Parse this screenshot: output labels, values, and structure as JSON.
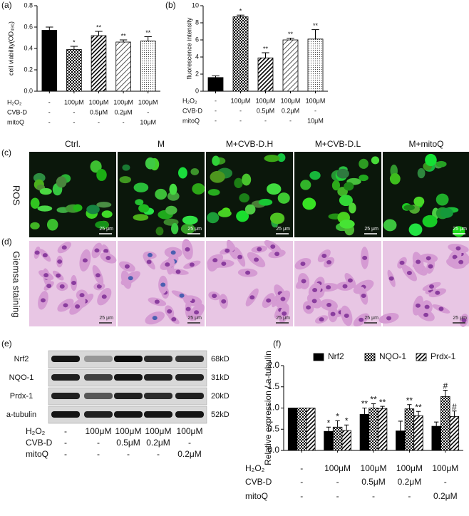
{
  "chart_data": [
    {
      "type": "bar",
      "panel_label": "(a)",
      "y_label": "cell viability(OD₄₉₀)",
      "categories": [
        null,
        null,
        null,
        null,
        null
      ],
      "values": [
        0.57,
        0.39,
        0.52,
        0.46,
        0.47
      ],
      "errors": [
        0.03,
        0.03,
        0.04,
        0.02,
        0.04
      ],
      "significance": [
        null,
        "*",
        "**",
        "**",
        "**"
      ],
      "patterns": [
        "solid",
        "checker",
        "hatch",
        "hatch-wide",
        "dots"
      ],
      "ylim": [
        0,
        0.8
      ],
      "yticks": [
        {
          "value": 0,
          "label": "0.0"
        },
        0.2,
        0.4,
        0.6,
        0.8
      ],
      "treatments": [
        {
          "name": "H₂O₂",
          "values": [
            "-",
            "100μM",
            "100μM",
            "100μM",
            "100μM"
          ]
        },
        {
          "name": "CVB-D",
          "values": [
            "-",
            "-",
            "0.5μM",
            "0.2μM",
            "-"
          ]
        },
        {
          "name": "mitoQ",
          "values": [
            "-",
            "-",
            "-",
            "-",
            "10μM"
          ]
        }
      ]
    },
    {
      "type": "bar",
      "panel_label": "(b)",
      "y_label": "fluorescence intensity",
      "categories": [
        null,
        null,
        null,
        null,
        null
      ],
      "values": [
        1.6,
        8.7,
        3.9,
        6.0,
        6.1
      ],
      "errors": [
        0.2,
        0.2,
        0.6,
        0.2,
        1.1
      ],
      "significance": [
        null,
        "*",
        "**",
        "**",
        "**"
      ],
      "patterns": [
        "solid",
        "checker",
        "hatch",
        "hatch-wide",
        "dots"
      ],
      "ylim": [
        0,
        10
      ],
      "yticks": [
        0,
        2,
        4,
        6,
        8,
        10
      ],
      "treatments": [
        {
          "name": "H₂O₂",
          "values": [
            "-",
            "100μM",
            "100μM",
            "100μM",
            "100μM"
          ]
        },
        {
          "name": "CVB-D",
          "values": [
            "-",
            "-",
            "0.5μM",
            "0.2μM",
            "-"
          ]
        },
        {
          "name": "mitoQ",
          "values": [
            "-",
            "-",
            "-",
            "-",
            "10μM"
          ]
        }
      ]
    },
    {
      "type": "grouped-bar",
      "panel_label": "(f)",
      "y_label": "Relative expression / a-tubulin",
      "categories": [
        null,
        null,
        null,
        null,
        null
      ],
      "series": [
        {
          "name": "Nrf2",
          "pattern": "solid",
          "values": [
            1.0,
            0.45,
            0.85,
            0.46,
            0.57
          ],
          "errors": [
            0,
            0.1,
            0.15,
            0.23,
            0.1
          ],
          "significance": [
            null,
            "*",
            "**",
            null,
            null
          ]
        },
        {
          "name": "NQO-1",
          "pattern": "checker",
          "values": [
            1.0,
            0.55,
            1.0,
            0.98,
            1.27
          ],
          "errors": [
            0,
            0.15,
            0.1,
            0.1,
            0.15
          ],
          "significance": [
            null,
            "*",
            "**",
            "**",
            "#"
          ]
        },
        {
          "name": "Prdx-1",
          "pattern": "hatch",
          "values": [
            1.0,
            0.47,
            0.99,
            0.82,
            0.8
          ],
          "errors": [
            0,
            0.13,
            0.05,
            0.1,
            0.13
          ],
          "significance": [
            null,
            "*",
            "**",
            "**",
            "#"
          ]
        }
      ],
      "ylim": [
        0,
        2
      ],
      "yticks": [
        {
          "value": 0,
          "label": "0.0"
        },
        0.5,
        {
          "value": 1,
          "label": "1.0"
        },
        1.5,
        {
          "value": 2,
          "label": "2.0"
        }
      ],
      "legend": "top",
      "treatments": [
        {
          "name": "H₂O₂",
          "values": [
            "-",
            "100μM",
            "100μM",
            "100μM",
            "100μM"
          ]
        },
        {
          "name": "CVB-D",
          "values": [
            "-",
            "-",
            "0.5μM",
            "0.2μM",
            "-"
          ]
        },
        {
          "name": "mitoQ",
          "values": [
            "-",
            "-",
            "-",
            "-",
            "0.2μM"
          ]
        }
      ]
    }
  ],
  "images": {
    "columns": [
      "Ctrl.",
      "M",
      "M+CVB-D.H",
      "M+CVB-D.L",
      "M+mitoQ"
    ],
    "rows": [
      {
        "panel_label": "(c)",
        "name": "ROS"
      },
      {
        "panel_label": "(d)",
        "name": "Giemsa staining"
      }
    ],
    "scale_bar": "25 μm"
  },
  "blot": {
    "panel_label": "(e)",
    "proteins": [
      "Nrf2",
      "NQO-1",
      "Prdx-1",
      "a-tubulin"
    ],
    "sizes": [
      "68kD",
      "31kD",
      "20kD",
      "52kD"
    ],
    "treatments": [
      {
        "name": "H₂O₂",
        "values": [
          "-",
          "100μM",
          "100μM",
          "100μM",
          "100μM"
        ]
      },
      {
        "name": "CVB-D",
        "values": [
          "-",
          "-",
          "0.5μM",
          "0.2μM",
          "-"
        ]
      },
      {
        "name": "mitoQ",
        "values": [
          "-",
          "-",
          "-",
          "-",
          "0.2μM"
        ]
      }
    ]
  }
}
